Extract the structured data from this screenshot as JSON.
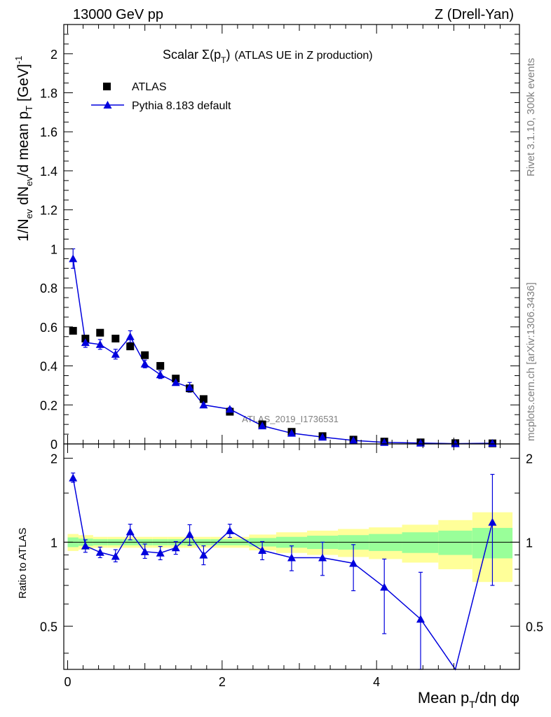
{
  "header": {
    "left": "13000 GeV pp",
    "right": "Z (Drell-Yan)"
  },
  "side": {
    "rivet": "Rivet 3.1.10,  300k events",
    "mcplots": "mcplots.cern.ch [arXiv:1306.3436]"
  },
  "colors": {
    "mc": "#0000dd",
    "data": "#000000",
    "band_inner": "#99ff99",
    "band_outer": "#ffff99",
    "grey": "#808080"
  },
  "chart_data": [
    {
      "type": "scatter",
      "panel": "main",
      "title": "Scalar Σ(p_T) (ATLAS UE in Z production)",
      "title_parts": {
        "prefix": "Scalar ",
        "sigma": "Σ(p",
        "sub": "T",
        "close": ")",
        "rest": "(ATLAS UE in Z production)"
      },
      "watermark": "ATLAS_2019_I1736531",
      "ylabel": "1/N_ev dN_ev/d mean p_T [GeV]^-1",
      "ylabel_parts": {
        "a": "1/N",
        "a_sub": "ev",
        "b": " dN",
        "b_sub": "ev",
        "c": "/d mean p",
        "c_sub": "T",
        "d": " [GeV]",
        "d_sup": "-1"
      },
      "xlim": [
        -0.05,
        5.85
      ],
      "ylim": [
        0,
        2.15
      ],
      "yticks": [
        0,
        0.2,
        0.4,
        0.6,
        0.8,
        1,
        1.2,
        1.4,
        1.6,
        1.8,
        2
      ],
      "ytick_labels": [
        "0",
        "0.2",
        "0.4",
        "0.6",
        "0.8",
        "1",
        "1.2",
        "1.4",
        "1.6",
        "1.8",
        "2"
      ],
      "legend": [
        "ATLAS",
        "Pythia 8.183 default"
      ],
      "legend_position": "top-left",
      "series": [
        {
          "name": "ATLAS",
          "marker": "square",
          "x": [
            0.07,
            0.23,
            0.42,
            0.62,
            0.81,
            1.0,
            1.2,
            1.4,
            1.58,
            1.76,
            2.1,
            2.52,
            2.9,
            3.3,
            3.7,
            4.1,
            4.57,
            5.02,
            5.5
          ],
          "y": [
            0.58,
            0.54,
            0.57,
            0.54,
            0.5,
            0.455,
            0.4,
            0.335,
            0.285,
            0.23,
            0.165,
            0.1,
            0.062,
            0.04,
            0.022,
            0.012,
            0.008,
            0.004,
            0.003
          ]
        },
        {
          "name": "Pythia 8.183 default",
          "marker": "triangle",
          "x": [
            0.07,
            0.23,
            0.42,
            0.62,
            0.81,
            1.0,
            1.2,
            1.4,
            1.58,
            1.76,
            2.1,
            2.52,
            2.9,
            3.3,
            3.7,
            4.1,
            4.57,
            5.02,
            5.5
          ],
          "y": [
            0.95,
            0.52,
            0.51,
            0.46,
            0.55,
            0.41,
            0.355,
            0.315,
            0.29,
            0.2,
            0.178,
            0.093,
            0.055,
            0.035,
            0.018,
            0.008,
            0.0045,
            0.0012,
            0.0035
          ],
          "err": [
            0.05,
            0.025,
            0.025,
            0.025,
            0.03,
            0.02,
            0.02,
            0.015,
            0.025,
            0.01,
            0.008,
            0.005,
            0.004,
            0.003,
            0.002,
            0.002,
            0.001,
            0.001,
            0.001
          ]
        }
      ]
    },
    {
      "type": "line",
      "panel": "ratio",
      "ylabel": "Ratio to ATLAS",
      "xlabel": "Mean p_T/dη dφ",
      "xlabel_parts": {
        "a": "Mean p",
        "a_sub": "T",
        "b": "/dη dφ"
      },
      "xlim": [
        -0.05,
        5.85
      ],
      "ylim": [
        0.35,
        2.25
      ],
      "xticks": [
        0,
        2,
        4
      ],
      "xtick_labels": [
        "0",
        "2",
        "4"
      ],
      "yticks": [
        0.5,
        1,
        2
      ],
      "ytick_labels": [
        "0.5",
        "1",
        "2"
      ],
      "reference": 1,
      "bands": {
        "edges": [
          0.0,
          0.14,
          0.33,
          0.52,
          0.71,
          0.9,
          1.1,
          1.3,
          1.5,
          1.67,
          1.85,
          2.35,
          2.7,
          3.1,
          3.5,
          3.9,
          4.33,
          4.8,
          5.24,
          5.76
        ],
        "inner_lo": [
          0.96,
          0.97,
          0.975,
          0.975,
          0.975,
          0.975,
          0.975,
          0.975,
          0.975,
          0.975,
          0.975,
          0.965,
          0.955,
          0.945,
          0.94,
          0.93,
          0.915,
          0.9,
          0.875
        ],
        "inner_hi": [
          1.04,
          1.03,
          1.025,
          1.025,
          1.025,
          1.025,
          1.025,
          1.025,
          1.025,
          1.025,
          1.025,
          1.035,
          1.045,
          1.055,
          1.06,
          1.07,
          1.085,
          1.1,
          1.125
        ],
        "outer_lo": [
          0.93,
          0.94,
          0.955,
          0.955,
          0.955,
          0.955,
          0.955,
          0.955,
          0.955,
          0.955,
          0.955,
          0.935,
          0.915,
          0.9,
          0.885,
          0.87,
          0.845,
          0.8,
          0.72
        ],
        "outer_hi": [
          1.07,
          1.06,
          1.045,
          1.045,
          1.045,
          1.045,
          1.045,
          1.045,
          1.045,
          1.045,
          1.045,
          1.065,
          1.085,
          1.1,
          1.115,
          1.13,
          1.155,
          1.2,
          1.28
        ]
      },
      "series": [
        {
          "name": "Pythia 8.183 default / ATLAS",
          "x": [
            0.07,
            0.23,
            0.42,
            0.62,
            0.81,
            1.0,
            1.2,
            1.4,
            1.58,
            1.76,
            2.1,
            2.52,
            2.9,
            3.3,
            3.7,
            4.1,
            4.57,
            5.02,
            5.5
          ],
          "y": [
            1.7,
            0.97,
            0.92,
            0.89,
            1.09,
            0.925,
            0.915,
            0.955,
            1.065,
            0.9,
            1.1,
            0.935,
            0.88,
            0.88,
            0.84,
            0.69,
            0.53,
            0.35,
            1.18
          ],
          "err_lo": [
            0.06,
            0.05,
            0.04,
            0.04,
            0.07,
            0.05,
            0.05,
            0.05,
            0.09,
            0.07,
            0.06,
            0.07,
            0.09,
            0.12,
            0.17,
            0.22,
            0.21,
            0.0,
            0.48
          ],
          "err_hi": [
            0.07,
            0.05,
            0.04,
            0.05,
            0.07,
            0.06,
            0.05,
            0.05,
            0.09,
            0.07,
            0.06,
            0.07,
            0.09,
            0.12,
            0.14,
            0.18,
            0.25,
            0.0,
            0.57
          ]
        }
      ]
    }
  ]
}
